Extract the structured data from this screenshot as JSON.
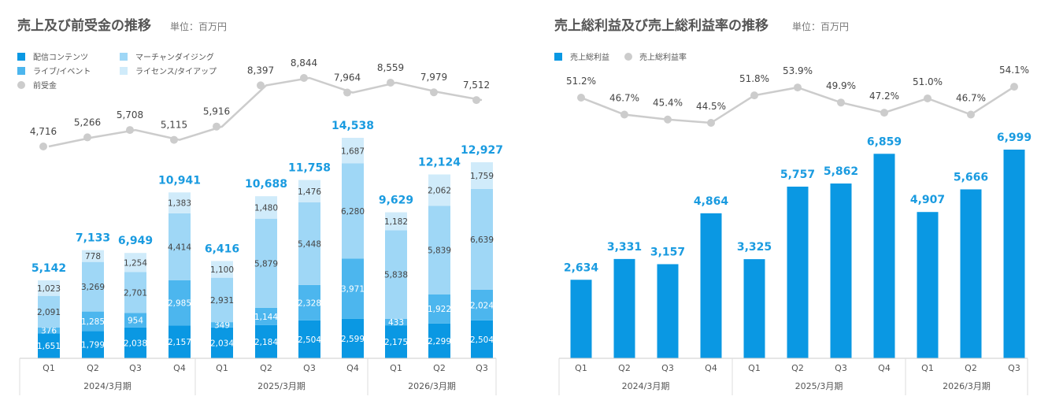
{
  "colors": {
    "seg1": "#0a98e3",
    "seg2": "#4cb6ee",
    "seg3": "#9fd7f6",
    "seg4": "#d0ebfa",
    "line": "#cccccc",
    "total": "#1a9be0",
    "text": "#444444"
  },
  "chart_data": [
    {
      "type": "bar",
      "stacked": true,
      "title": "売上及び前受金の推移",
      "unit": "単位：百万円",
      "categories": [
        "Q1",
        "Q2",
        "Q3",
        "Q4",
        "Q1",
        "Q2",
        "Q3",
        "Q4",
        "Q1",
        "Q2",
        "Q3"
      ],
      "groups": [
        {
          "label": "2024/3月期",
          "count": 4
        },
        {
          "label": "2025/3月期",
          "count": 4
        },
        {
          "label": "2026/3月期",
          "count": 3
        }
      ],
      "series": [
        {
          "name": "配信コンテンツ",
          "values": [
            1651,
            1799,
            2038,
            2157,
            2034,
            2184,
            2504,
            2599,
            2175,
            2299,
            2504
          ]
        },
        {
          "name": "ライブ/イベント",
          "values": [
            376,
            1285,
            954,
            2985,
            349,
            1144,
            2328,
            3971,
            433,
            1922,
            2024
          ]
        },
        {
          "name": "マーチャンダイジング",
          "values": [
            2091,
            3269,
            2701,
            4414,
            2931,
            5879,
            5448,
            6280,
            5838,
            5839,
            6639
          ]
        },
        {
          "name": "ライセンス/タイアップ",
          "values": [
            1023,
            778,
            1254,
            1383,
            1100,
            1480,
            1476,
            1687,
            1182,
            2062,
            1759
          ]
        }
      ],
      "totals": [
        "5,142",
        "7,133",
        "6,949",
        "10,941",
        "6,416",
        "10,688",
        "11,758",
        "14,538",
        "9,629",
        "12,124",
        "12,927"
      ],
      "line_series": {
        "name": "前受金",
        "values": [
          4716,
          5266,
          5708,
          5115,
          5916,
          8397,
          8844,
          7964,
          8559,
          7979,
          7512
        ]
      },
      "legend": [
        "配信コンテンツ",
        "マーチャンダイジング",
        "ライブ/イベント",
        "ライセンス/タイアップ",
        "前受金"
      ]
    },
    {
      "type": "bar",
      "title": "売上総利益及び売上総利益率の推移",
      "unit": "単位：百万円",
      "categories": [
        "Q1",
        "Q2",
        "Q3",
        "Q4",
        "Q1",
        "Q2",
        "Q3",
        "Q4",
        "Q1",
        "Q2",
        "Q3"
      ],
      "groups": [
        {
          "label": "2024/3月期",
          "count": 4
        },
        {
          "label": "2025/3月期",
          "count": 4
        },
        {
          "label": "2026/3月期",
          "count": 3
        }
      ],
      "series": [
        {
          "name": "売上総利益",
          "values": [
            2634,
            3331,
            3157,
            4864,
            3325,
            5757,
            5862,
            6859,
            4907,
            5666,
            6999
          ]
        }
      ],
      "line_series": {
        "name": "売上総利益率",
        "values": [
          51.2,
          46.7,
          45.4,
          44.5,
          51.8,
          53.9,
          49.9,
          47.2,
          51.0,
          46.7,
          54.1
        ],
        "suffix": "%"
      },
      "legend": [
        "売上総利益",
        "売上総利益率"
      ]
    }
  ]
}
